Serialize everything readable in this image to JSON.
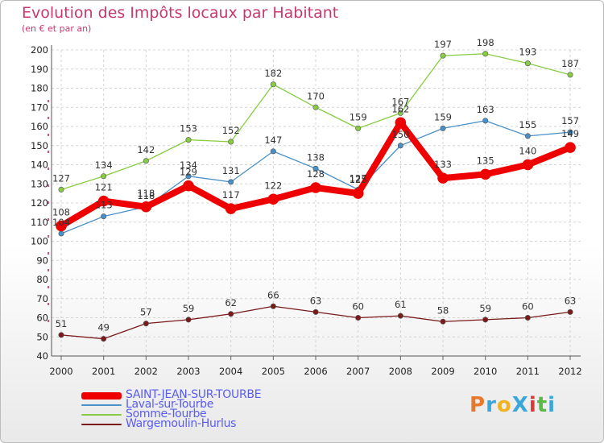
{
  "title": "Evolution des Impôts locaux par Habitant",
  "subtitle": "(en € et par an)",
  "logo_text": "ProXiti",
  "logo_colors": [
    "#e8782a",
    "#3aa7d8",
    "#f0b323",
    "#3aa7d8",
    "#d83a3a",
    "#58b848",
    "#3aa7d8"
  ],
  "colors": {
    "title": "#c8386e",
    "legend_text": "#5a5cf0"
  },
  "chart_data": {
    "type": "line",
    "title": "Evolution des Impôts locaux par Habitant",
    "subtitle": "(en € et par an)",
    "xlabel": "",
    "ylabel": "",
    "x": [
      "2000",
      "2001",
      "2002",
      "2003",
      "2004",
      "2005",
      "2006",
      "2007",
      "2008",
      "2009",
      "2010",
      "2011",
      "2012"
    ],
    "ylim": [
      40,
      200
    ],
    "yticks": [
      "40",
      "50",
      "60",
      "70",
      "80",
      "90",
      "100",
      "110",
      "120",
      "130",
      "140",
      "150",
      "160",
      "170",
      "180",
      "190",
      "200"
    ],
    "grid": true,
    "legend_position": "bottom-left",
    "series": [
      {
        "name": "Somme-Tourbe",
        "color": "#88cc44",
        "values": [
          127,
          134,
          142,
          153,
          152,
          182,
          170,
          159,
          167,
          197,
          198,
          193,
          187
        ]
      },
      {
        "name": "Laval-sur-Tourbe",
        "color": "#4a90c8",
        "values": [
          104,
          113,
          118,
          134,
          131,
          147,
          138,
          127,
          150,
          159,
          163,
          155,
          157
        ]
      },
      {
        "name": "Wargemoulin-Hurlus",
        "color": "#7a1a1a",
        "values": [
          51,
          49,
          57,
          59,
          62,
          66,
          63,
          60,
          61,
          58,
          59,
          60,
          63
        ]
      },
      {
        "name": "SAINT-JEAN-SUR-TOURBE",
        "color": "#ee0000",
        "values": [
          108,
          121,
          118,
          129,
          117,
          122,
          128,
          125,
          162,
          133,
          135,
          140,
          149
        ]
      }
    ],
    "legend_order": [
      "SAINT-JEAN-SUR-TOURBE",
      "Laval-sur-Tourbe",
      "Somme-Tourbe",
      "Wargemoulin-Hurlus"
    ]
  }
}
